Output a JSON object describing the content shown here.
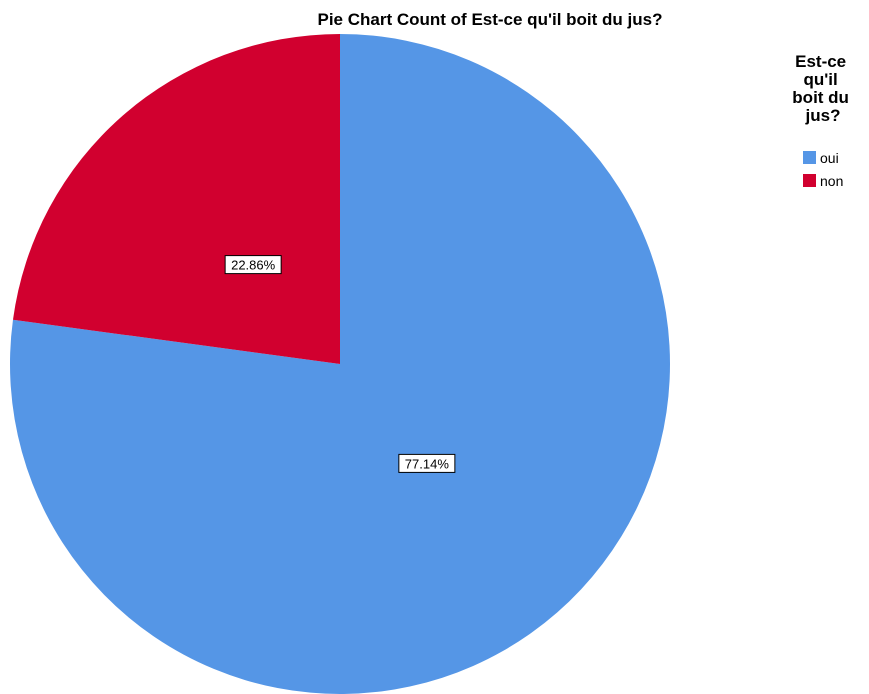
{
  "chart_data": {
    "type": "pie",
    "title": "Pie Chart Count of Est-ce qu'il boit du jus?",
    "legend": {
      "title": "Est-ce qu'il boit du jus?",
      "title_lines": [
        "Est-ce",
        "qu'il",
        "boit du",
        "jus?"
      ],
      "position": "top-right"
    },
    "slices": [
      {
        "label": "oui",
        "value": 77.14,
        "display": "77.14%",
        "color": "#5596e6"
      },
      {
        "label": "non",
        "value": 22.86,
        "display": "22.86%",
        "color": "#d1002f"
      }
    ],
    "start_angle": "12 o'clock",
    "direction": "clockwise"
  }
}
